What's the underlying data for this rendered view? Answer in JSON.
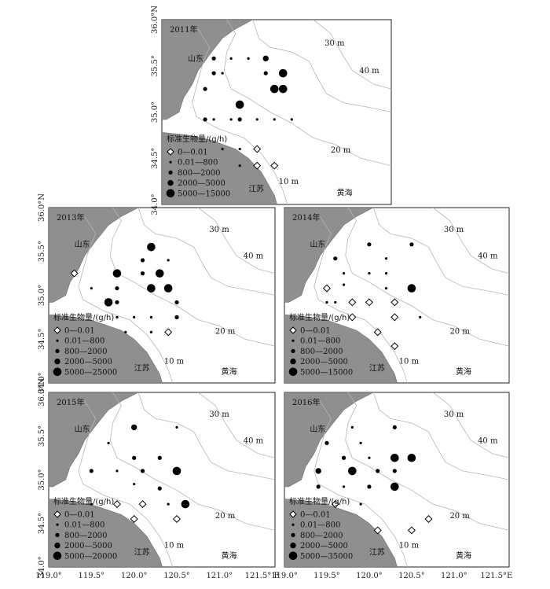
{
  "figure": {
    "lat_axis": {
      "unit_n": "N",
      "labels": [
        "34.0°",
        "34.5°",
        "35.0°",
        "35.5°",
        "36.0°"
      ]
    },
    "lon_axis": {
      "unit_e": "E",
      "labels": [
        "119.0°",
        "119.5°",
        "120.0°",
        "120.5°",
        "121.0°",
        "121.5°"
      ]
    },
    "place_names": {
      "shandong": "山东",
      "jiangsu": "江苏",
      "yellow_sea": "黄海"
    },
    "depth_labels": [
      "10 m",
      "20 m",
      "30 m",
      "40 m"
    ],
    "legend_title": "标准生物量/(g/h)",
    "extent": {
      "lon": [
        119.0,
        121.65
      ],
      "lat": [
        34.0,
        36.0
      ]
    }
  },
  "panels": [
    {
      "year": "2011年",
      "legend": [
        "0—0.01",
        "0.01—800",
        "800—2000",
        "2000—5000",
        "5000—15000"
      ],
      "stations": [
        {
          "lon": 119.6,
          "lat": 35.58,
          "c": 2
        },
        {
          "lon": 119.8,
          "lat": 35.58,
          "c": 1
        },
        {
          "lon": 120.0,
          "lat": 35.58,
          "c": 1
        },
        {
          "lon": 120.2,
          "lat": 35.58,
          "c": 3
        },
        {
          "lon": 119.6,
          "lat": 35.42,
          "c": 2
        },
        {
          "lon": 119.7,
          "lat": 35.42,
          "c": 1
        },
        {
          "lon": 120.2,
          "lat": 35.42,
          "c": 2
        },
        {
          "lon": 120.4,
          "lat": 35.42,
          "c": 4
        },
        {
          "lon": 119.5,
          "lat": 35.25,
          "c": 2
        },
        {
          "lon": 120.3,
          "lat": 35.25,
          "c": 4
        },
        {
          "lon": 120.4,
          "lat": 35.25,
          "c": 4
        },
        {
          "lon": 119.9,
          "lat": 35.08,
          "c": 4
        },
        {
          "lon": 119.5,
          "lat": 34.92,
          "c": 2
        },
        {
          "lon": 119.6,
          "lat": 34.92,
          "c": 1
        },
        {
          "lon": 119.8,
          "lat": 34.92,
          "c": 1
        },
        {
          "lon": 119.9,
          "lat": 34.92,
          "c": 2
        },
        {
          "lon": 120.1,
          "lat": 34.92,
          "c": 1
        },
        {
          "lon": 120.3,
          "lat": 34.92,
          "c": 1
        },
        {
          "lon": 120.5,
          "lat": 34.92,
          "c": 1
        },
        {
          "lon": 119.7,
          "lat": 34.6,
          "c": 1
        },
        {
          "lon": 119.9,
          "lat": 34.6,
          "c": 1
        },
        {
          "lon": 120.1,
          "lat": 34.6,
          "c": 0
        },
        {
          "lon": 119.9,
          "lat": 34.42,
          "c": 1
        },
        {
          "lon": 120.1,
          "lat": 34.42,
          "c": 0
        },
        {
          "lon": 120.3,
          "lat": 34.42,
          "c": 0
        }
      ]
    },
    {
      "year": "2013年",
      "legend": [
        "0—0.01",
        "0.01—800",
        "800—2000",
        "2000—5000",
        "5000—25000"
      ],
      "stations": [
        {
          "lon": 120.2,
          "lat": 35.55,
          "c": 4
        },
        {
          "lon": 120.1,
          "lat": 35.4,
          "c": 2
        },
        {
          "lon": 120.4,
          "lat": 35.4,
          "c": 1
        },
        {
          "lon": 119.3,
          "lat": 35.25,
          "c": 0
        },
        {
          "lon": 119.8,
          "lat": 35.25,
          "c": 4
        },
        {
          "lon": 120.1,
          "lat": 35.25,
          "c": 2
        },
        {
          "lon": 120.3,
          "lat": 35.25,
          "c": 4
        },
        {
          "lon": 119.5,
          "lat": 35.08,
          "c": 1
        },
        {
          "lon": 119.8,
          "lat": 35.08,
          "c": 2
        },
        {
          "lon": 120.2,
          "lat": 35.08,
          "c": 4
        },
        {
          "lon": 120.4,
          "lat": 35.08,
          "c": 4
        },
        {
          "lon": 119.7,
          "lat": 34.92,
          "c": 4
        },
        {
          "lon": 119.8,
          "lat": 34.92,
          "c": 2
        },
        {
          "lon": 120.5,
          "lat": 34.92,
          "c": 2
        },
        {
          "lon": 119.8,
          "lat": 34.75,
          "c": 1
        },
        {
          "lon": 120.0,
          "lat": 34.75,
          "c": 1
        },
        {
          "lon": 120.2,
          "lat": 34.75,
          "c": 1
        },
        {
          "lon": 120.5,
          "lat": 34.75,
          "c": 2
        },
        {
          "lon": 119.9,
          "lat": 34.58,
          "c": 1
        },
        {
          "lon": 120.2,
          "lat": 34.58,
          "c": 1
        },
        {
          "lon": 120.4,
          "lat": 34.58,
          "c": 0
        }
      ]
    },
    {
      "year": "2014年",
      "legend": [
        "0—0.01",
        "0.01—800",
        "800—2000",
        "2000—5000",
        "5000—15000"
      ],
      "stations": [
        {
          "lon": 120.0,
          "lat": 35.58,
          "c": 2
        },
        {
          "lon": 120.5,
          "lat": 35.58,
          "c": 2
        },
        {
          "lon": 119.6,
          "lat": 35.42,
          "c": 2
        },
        {
          "lon": 120.2,
          "lat": 35.42,
          "c": 1
        },
        {
          "lon": 119.7,
          "lat": 35.25,
          "c": 1
        },
        {
          "lon": 120.0,
          "lat": 35.25,
          "c": 1
        },
        {
          "lon": 120.2,
          "lat": 35.25,
          "c": 1
        },
        {
          "lon": 119.5,
          "lat": 35.08,
          "c": 0
        },
        {
          "lon": 119.7,
          "lat": 35.12,
          "c": 1
        },
        {
          "lon": 120.2,
          "lat": 35.08,
          "c": 1
        },
        {
          "lon": 120.5,
          "lat": 35.08,
          "c": 4
        },
        {
          "lon": 119.5,
          "lat": 34.92,
          "c": 1
        },
        {
          "lon": 119.6,
          "lat": 34.92,
          "c": 1
        },
        {
          "lon": 119.8,
          "lat": 34.92,
          "c": 0
        },
        {
          "lon": 120.0,
          "lat": 34.92,
          "c": 0
        },
        {
          "lon": 120.3,
          "lat": 34.92,
          "c": 0
        },
        {
          "lon": 119.8,
          "lat": 34.75,
          "c": 0
        },
        {
          "lon": 120.3,
          "lat": 34.75,
          "c": 0
        },
        {
          "lon": 120.6,
          "lat": 34.75,
          "c": 1
        },
        {
          "lon": 120.1,
          "lat": 34.58,
          "c": 0
        },
        {
          "lon": 120.3,
          "lat": 34.42,
          "c": 0
        }
      ]
    },
    {
      "year": "2015年",
      "legend": [
        "0—0.01",
        "0.01—800",
        "800—2000",
        "2000—5000",
        "5000—20000"
      ],
      "stations": [
        {
          "lon": 120.0,
          "lat": 35.6,
          "c": 3
        },
        {
          "lon": 120.5,
          "lat": 35.6,
          "c": 1
        },
        {
          "lon": 119.7,
          "lat": 35.42,
          "c": 1
        },
        {
          "lon": 120.0,
          "lat": 35.25,
          "c": 2
        },
        {
          "lon": 120.3,
          "lat": 35.25,
          "c": 2
        },
        {
          "lon": 119.5,
          "lat": 35.1,
          "c": 2
        },
        {
          "lon": 119.8,
          "lat": 35.1,
          "c": 1
        },
        {
          "lon": 120.1,
          "lat": 35.1,
          "c": 2
        },
        {
          "lon": 120.5,
          "lat": 35.1,
          "c": 4
        },
        {
          "lon": 120.0,
          "lat": 34.95,
          "c": 1
        },
        {
          "lon": 120.3,
          "lat": 34.9,
          "c": 2
        },
        {
          "lon": 119.5,
          "lat": 34.72,
          "c": 1
        },
        {
          "lon": 119.8,
          "lat": 34.72,
          "c": 0
        },
        {
          "lon": 120.1,
          "lat": 34.72,
          "c": 0
        },
        {
          "lon": 120.4,
          "lat": 34.72,
          "c": 1
        },
        {
          "lon": 120.6,
          "lat": 34.72,
          "c": 4
        },
        {
          "lon": 120.0,
          "lat": 34.55,
          "c": 0
        },
        {
          "lon": 120.5,
          "lat": 34.55,
          "c": 0
        }
      ]
    },
    {
      "year": "2016年",
      "legend": [
        "0—0.01",
        "0.01—800",
        "800—2000",
        "2000—5000",
        "5000—35000"
      ],
      "stations": [
        {
          "lon": 119.8,
          "lat": 35.6,
          "c": 1
        },
        {
          "lon": 120.3,
          "lat": 35.6,
          "c": 2
        },
        {
          "lon": 119.5,
          "lat": 35.42,
          "c": 2
        },
        {
          "lon": 119.9,
          "lat": 35.42,
          "c": 1
        },
        {
          "lon": 119.7,
          "lat": 35.25,
          "c": 2
        },
        {
          "lon": 120.0,
          "lat": 35.25,
          "c": 1
        },
        {
          "lon": 120.3,
          "lat": 35.25,
          "c": 4
        },
        {
          "lon": 120.5,
          "lat": 35.25,
          "c": 4
        },
        {
          "lon": 119.4,
          "lat": 35.1,
          "c": 3
        },
        {
          "lon": 119.8,
          "lat": 35.1,
          "c": 4
        },
        {
          "lon": 120.1,
          "lat": 35.1,
          "c": 2
        },
        {
          "lon": 120.3,
          "lat": 35.1,
          "c": 2
        },
        {
          "lon": 119.4,
          "lat": 34.92,
          "c": 2
        },
        {
          "lon": 119.7,
          "lat": 34.92,
          "c": 1
        },
        {
          "lon": 120.0,
          "lat": 34.92,
          "c": 2
        },
        {
          "lon": 120.3,
          "lat": 34.92,
          "c": 4
        },
        {
          "lon": 119.6,
          "lat": 34.72,
          "c": 0
        },
        {
          "lon": 119.9,
          "lat": 34.72,
          "c": 1
        },
        {
          "lon": 120.1,
          "lat": 34.42,
          "c": 0
        },
        {
          "lon": 120.5,
          "lat": 34.42,
          "c": 0
        },
        {
          "lon": 120.7,
          "lat": 34.55,
          "c": 0
        }
      ]
    }
  ]
}
